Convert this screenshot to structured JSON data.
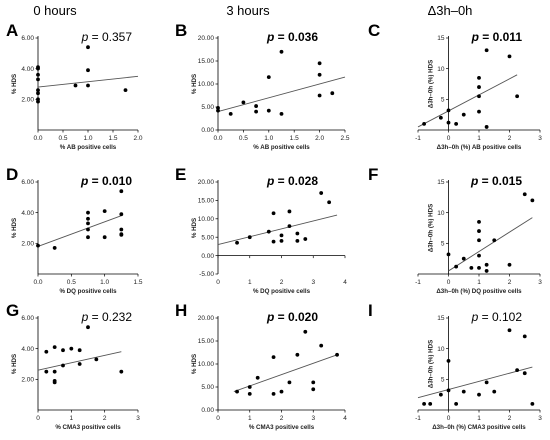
{
  "column_titles": [
    "0 hours",
    "3 hours",
    "Δ3h–0h"
  ],
  "chart_data": [
    {
      "id": "A",
      "type": "scatter",
      "col": 0,
      "row": 0,
      "p_label": "p",
      "p_value": "= 0.357",
      "p_bold": false,
      "xlabel": "% AB positive cells",
      "ylabel": "% HDS",
      "xlim": [
        0,
        2
      ],
      "ylim": [
        0,
        6
      ],
      "xticks": [
        0,
        0.5,
        1,
        1.5,
        2
      ],
      "xtick_labels": [
        "0.0",
        "0.5",
        "1.0",
        "1.5",
        "2.0"
      ],
      "yticks": [
        2,
        4,
        6
      ],
      "ytick_labels": [
        "2.00",
        "4.00",
        "6.00"
      ],
      "x": [
        0,
        0,
        0,
        0,
        0,
        0,
        0,
        0,
        0.75,
        1.0,
        1.0,
        1.0,
        1.75
      ],
      "y": [
        4.0,
        4.1,
        3.6,
        3.3,
        2.6,
        2.4,
        2.0,
        1.85,
        2.9,
        5.4,
        3.9,
        2.9,
        2.6
      ],
      "fit": [
        [
          0,
          2.8
        ],
        [
          2,
          3.5
        ]
      ]
    },
    {
      "id": "B",
      "type": "scatter",
      "col": 1,
      "row": 0,
      "p_label": "p",
      "p_value": "= 0.036",
      "p_bold": true,
      "xlabel": "% AB positive cells",
      "ylabel": "% HDS",
      "xlim": [
        0,
        2.5
      ],
      "ylim": [
        0,
        20
      ],
      "xticks": [
        0,
        0.5,
        1,
        1.5,
        2,
        2.5
      ],
      "xtick_labels": [
        "0.0",
        "0.5",
        "1.0",
        "1.5",
        "2.0",
        "2.5"
      ],
      "yticks": [
        0,
        5,
        10,
        15,
        20
      ],
      "ytick_labels": [
        "0.00",
        "5.00",
        "10.00",
        "15.00",
        "20.00"
      ],
      "x": [
        0,
        0,
        0.25,
        0.5,
        0.75,
        0.75,
        1.0,
        1.0,
        1.25,
        1.25,
        2.0,
        2.0,
        2.0,
        2.25
      ],
      "y": [
        4.8,
        4.2,
        3.5,
        6.0,
        5.2,
        4.0,
        11.5,
        4.2,
        17.0,
        3.5,
        14.5,
        12.0,
        7.5,
        8.0
      ],
      "fit": [
        [
          0,
          4.0
        ],
        [
          2.5,
          11.5
        ]
      ]
    },
    {
      "id": "C",
      "type": "scatter",
      "col": 2,
      "row": 0,
      "p_label": "p",
      "p_value": "= 0.011",
      "p_bold": true,
      "xlabel": "Δ3h–0h (%) AB positive cells",
      "ylabel": "Δ3h–0h (%) HDS",
      "xlim": [
        -1,
        3
      ],
      "ylim": [
        0,
        15
      ],
      "ticks_at_axis_origin": true,
      "xticks": [
        -1,
        0,
        1,
        2,
        3
      ],
      "xtick_labels": [
        "-1",
        "0",
        "1",
        "2",
        "3"
      ],
      "yticks": [
        5,
        10,
        15
      ],
      "ytick_labels": [
        "5",
        "10",
        "15"
      ],
      "x": [
        -0.8,
        -0.25,
        0,
        0,
        0.25,
        0.5,
        1.0,
        1.0,
        1.0,
        1.0,
        1.25,
        1.25,
        2.0,
        2.25
      ],
      "y": [
        1.0,
        2.0,
        3.2,
        1.2,
        1.0,
        2.5,
        8.5,
        7.0,
        5.5,
        3.0,
        13.0,
        0.5,
        12.0,
        5.5
      ],
      "fit": [
        [
          -1,
          0.5
        ],
        [
          2.25,
          9.0
        ]
      ]
    },
    {
      "id": "D",
      "type": "scatter",
      "col": 0,
      "row": 1,
      "p_label": "p",
      "p_value": "= 0.010",
      "p_bold": true,
      "xlabel": "% DQ positive cells",
      "ylabel": "% HDS",
      "xlim": [
        0,
        1.5
      ],
      "ylim": [
        0,
        6
      ],
      "xticks": [
        0,
        0.5,
        1,
        1.5
      ],
      "xtick_labels": [
        "0.0",
        "0.5",
        "1.0",
        "1.5"
      ],
      "yticks": [
        2,
        4,
        6
      ],
      "ytick_labels": [
        "2.00",
        "4.00",
        "6.00"
      ],
      "x": [
        0,
        0.25,
        0.75,
        0.75,
        0.75,
        0.75,
        0.75,
        1.0,
        1.0,
        1.25,
        1.25,
        1.25,
        1.25,
        1.25
      ],
      "y": [
        1.85,
        1.7,
        4.0,
        3.6,
        3.3,
        2.9,
        2.4,
        4.1,
        2.4,
        5.4,
        3.9,
        2.9,
        2.6,
        2.55
      ],
      "fit": [
        [
          0,
          1.8
        ],
        [
          1.25,
          3.8
        ]
      ]
    },
    {
      "id": "E",
      "type": "scatter",
      "col": 1,
      "row": 1,
      "p_label": "p",
      "p_value": "= 0.028",
      "p_bold": true,
      "xlabel": "% DQ positive cells",
      "ylabel": "% HDS",
      "xlim": [
        0,
        4
      ],
      "ylim": [
        -5,
        20
      ],
      "xticks": [
        0,
        1,
        2,
        3,
        4
      ],
      "xtick_labels": [
        "0",
        "1",
        "2",
        "3",
        "4"
      ],
      "yticks": [
        -5,
        0,
        5,
        10,
        15,
        20
      ],
      "ytick_labels": [
        "-5.00",
        "0.00",
        "5.00",
        "10.00",
        "15.00",
        "20.00"
      ],
      "x": [
        0.6,
        1.0,
        1.6,
        1.75,
        1.75,
        2.0,
        2.0,
        2.25,
        2.25,
        2.5,
        2.5,
        2.75,
        3.25,
        3.5
      ],
      "y": [
        3.5,
        5.0,
        6.5,
        11.5,
        3.8,
        5.5,
        4.0,
        12.0,
        8.0,
        4.0,
        6.0,
        4.5,
        17.0,
        14.5
      ],
      "fit": [
        [
          0,
          3.0
        ],
        [
          3.75,
          11.0
        ]
      ]
    },
    {
      "id": "F",
      "type": "scatter",
      "col": 2,
      "row": 1,
      "p_label": "p",
      "p_value": "= 0.015",
      "p_bold": true,
      "xlabel": "Δ3h–0h (%) DQ positive cells",
      "ylabel": "Δ3h–0h (%) HDS",
      "xlim": [
        -1,
        3
      ],
      "ylim": [
        0,
        15
      ],
      "ticks_at_axis_origin": true,
      "xticks": [
        -1,
        0,
        1,
        2,
        3
      ],
      "xtick_labels": [
        "-1",
        "0",
        "1",
        "2",
        "3"
      ],
      "yticks": [
        5,
        10,
        15
      ],
      "ytick_labels": [
        "5",
        "10",
        "15"
      ],
      "x": [
        0,
        0.25,
        0.5,
        0.75,
        1.0,
        1.0,
        1.0,
        1.0,
        1.0,
        1.25,
        1.25,
        1.5,
        2.0,
        2.5,
        2.75
      ],
      "y": [
        3.2,
        1.2,
        2.5,
        1.0,
        8.5,
        7.0,
        5.5,
        3.0,
        1.0,
        0.5,
        1.5,
        5.5,
        1.5,
        13.0,
        12.0
      ],
      "fit": [
        [
          0,
          0.5
        ],
        [
          2.75,
          9.2
        ]
      ]
    },
    {
      "id": "G",
      "type": "scatter",
      "col": 0,
      "row": 2,
      "p_label": "p",
      "p_value": "= 0.232",
      "p_bold": false,
      "xlabel": "% CMA3 positive cells",
      "ylabel": "% HDS",
      "xlim": [
        0,
        3
      ],
      "ylim": [
        0,
        6
      ],
      "xticks": [
        0,
        1,
        2,
        3
      ],
      "xtick_labels": [
        "0",
        "1",
        "2",
        "3"
      ],
      "yticks": [
        2,
        4,
        6
      ],
      "ytick_labels": [
        "2.00",
        "4.00",
        "6.00"
      ],
      "x": [
        0.25,
        0.25,
        0.5,
        0.5,
        0.5,
        0.5,
        0.75,
        0.75,
        1.0,
        1.25,
        1.25,
        1.5,
        1.75,
        2.5
      ],
      "y": [
        3.8,
        2.5,
        4.1,
        2.5,
        1.9,
        1.8,
        3.9,
        2.9,
        4.0,
        3.9,
        3.0,
        5.4,
        3.3,
        2.5
      ],
      "fit": [
        [
          0,
          2.6
        ],
        [
          2.5,
          3.8
        ]
      ]
    },
    {
      "id": "H",
      "type": "scatter",
      "col": 1,
      "row": 2,
      "p_label": "p",
      "p_value": "= 0.020",
      "p_bold": true,
      "xlabel": "% CMA3 positive cells",
      "ylabel": "% HDS",
      "xlim": [
        0,
        4
      ],
      "ylim": [
        0,
        20
      ],
      "xticks": [
        0,
        1,
        2,
        3,
        4
      ],
      "xtick_labels": [
        "0",
        "1",
        "2",
        "3",
        "4"
      ],
      "yticks": [
        0,
        5,
        10,
        15,
        20
      ],
      "ytick_labels": [
        "0.00",
        "5.00",
        "10.00",
        "15.00",
        "20.00"
      ],
      "x": [
        0.6,
        1.0,
        1.0,
        1.25,
        1.75,
        1.75,
        2.0,
        2.25,
        2.5,
        2.75,
        3.0,
        3.0,
        3.25,
        3.75
      ],
      "y": [
        4.0,
        5.0,
        3.5,
        7.0,
        11.5,
        3.5,
        4.0,
        6.0,
        12.0,
        17.0,
        4.5,
        6.0,
        14.0,
        12.0
      ],
      "fit": [
        [
          0.5,
          4.0
        ],
        [
          3.75,
          12.0
        ]
      ]
    },
    {
      "id": "I",
      "type": "scatter",
      "col": 2,
      "row": 2,
      "p_label": "p",
      "p_value": "= 0.102",
      "p_bold": false,
      "xlabel": "Δ3h–0h (%) CMA3 positive cells",
      "ylabel": "Δ3h–0h (%) HDS",
      "xlim": [
        -1,
        3
      ],
      "ylim": [
        0,
        15
      ],
      "ticks_at_axis_origin": true,
      "xticks": [
        -1,
        0,
        1,
        2,
        3
      ],
      "xtick_labels": [
        "-1",
        "0",
        "1",
        "2",
        "3"
      ],
      "yticks": [
        5,
        10,
        15
      ],
      "ytick_labels": [
        "5",
        "10",
        "15"
      ],
      "x": [
        -0.8,
        -0.6,
        -0.25,
        0,
        0,
        0.25,
        0.5,
        1.0,
        1.25,
        1.5,
        2.0,
        2.25,
        2.5,
        2.5,
        2.75
      ],
      "y": [
        1.0,
        1.0,
        2.5,
        8.0,
        3.2,
        1.0,
        3.0,
        2.5,
        4.5,
        3.0,
        13.0,
        6.5,
        12.0,
        6.0,
        1.0
      ],
      "fit": [
        [
          -1,
          2.0
        ],
        [
          2.75,
          7.0
        ]
      ]
    }
  ]
}
